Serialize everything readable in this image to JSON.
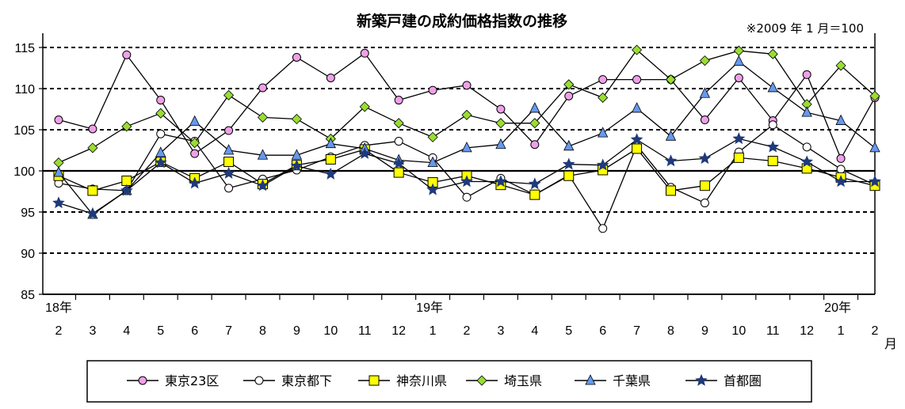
{
  "chart_data": {
    "type": "line",
    "title": "新築戸建の成約価格指数の推移",
    "note": "※2009 年 1 月＝100",
    "ylim": [
      85,
      115
    ],
    "yticks": [
      85,
      90,
      95,
      100,
      105,
      110,
      115
    ],
    "grid": "dashed horizontal lines at 90, 95, 105, 110, 115; solid line at 100",
    "categories": [
      "2",
      "3",
      "4",
      "5",
      "6",
      "7",
      "8",
      "9",
      "10",
      "11",
      "12",
      "1",
      "2",
      "3",
      "4",
      "5",
      "6",
      "7",
      "8",
      "9",
      "10",
      "11",
      "12",
      "1",
      "2"
    ],
    "year_labels": [
      {
        "label": "18年",
        "index": 0
      },
      {
        "label": "19年",
        "index": 11
      },
      {
        "label": "20年",
        "index": 23
      }
    ],
    "x_unit": "月",
    "legend_position": "bottom",
    "series": [
      {
        "name": "東京23区",
        "color": "#f0a0e8",
        "marker": "circle",
        "values": [
          106.2,
          105.1,
          114.1,
          108.6,
          102.1,
          104.9,
          110.1,
          113.8,
          111.3,
          114.3,
          108.6,
          109.8,
          110.4,
          107.5,
          103.2,
          109.1,
          111.1,
          111.1,
          111.1,
          106.2,
          111.3,
          106.1,
          111.7,
          101.5,
          108.9
        ]
      },
      {
        "name": "東京都下",
        "color": "#ffffff",
        "marker": "circle",
        "values": [
          98.5,
          97.8,
          97.6,
          104.5,
          103.6,
          97.9,
          99.0,
          100.1,
          101.7,
          103.1,
          103.6,
          101.6,
          96.8,
          99.1,
          97.1,
          99.5,
          93.0,
          103.1,
          98.0,
          96.1,
          102.3,
          105.6,
          102.9,
          100.2,
          98.3
        ]
      },
      {
        "name": "神奈川県",
        "color": "#ffff00",
        "marker": "square",
        "values": [
          99.4,
          97.6,
          98.8,
          101.1,
          99.1,
          101.1,
          98.4,
          100.7,
          101.4,
          102.6,
          99.8,
          98.6,
          99.4,
          98.3,
          97.1,
          99.4,
          100.1,
          102.7,
          97.6,
          98.2,
          101.6,
          101.2,
          100.3,
          99.2,
          98.2
        ]
      },
      {
        "name": "埼玉県",
        "color": "#99dd33",
        "marker": "diamond",
        "values": [
          101.0,
          102.8,
          105.4,
          107.0,
          103.4,
          109.2,
          106.5,
          106.3,
          103.9,
          107.8,
          105.8,
          104.1,
          106.8,
          105.8,
          105.8,
          110.5,
          108.9,
          114.7,
          111.1,
          113.4,
          114.6,
          114.2,
          108.1,
          112.8,
          109.1
        ]
      },
      {
        "name": "千葉県",
        "color": "#6699ee",
        "marker": "triangle",
        "values": [
          99.8,
          94.7,
          97.6,
          102.2,
          106.0,
          102.5,
          101.9,
          101.9,
          103.3,
          102.7,
          101.3,
          101.0,
          102.8,
          103.2,
          107.6,
          103.0,
          104.6,
          107.6,
          104.2,
          109.4,
          113.3,
          110.1,
          107.1,
          106.1,
          102.8
        ]
      },
      {
        "name": "首都圏",
        "color": "#1f3a7a",
        "marker": "star",
        "values": [
          96.1,
          94.8,
          97.6,
          101.0,
          98.5,
          99.7,
          98.2,
          100.6,
          99.6,
          102.1,
          100.9,
          97.7,
          98.7,
          98.7,
          98.4,
          100.8,
          100.7,
          103.8,
          101.2,
          101.5,
          103.9,
          102.9,
          101.1,
          98.7,
          98.7
        ]
      }
    ]
  }
}
